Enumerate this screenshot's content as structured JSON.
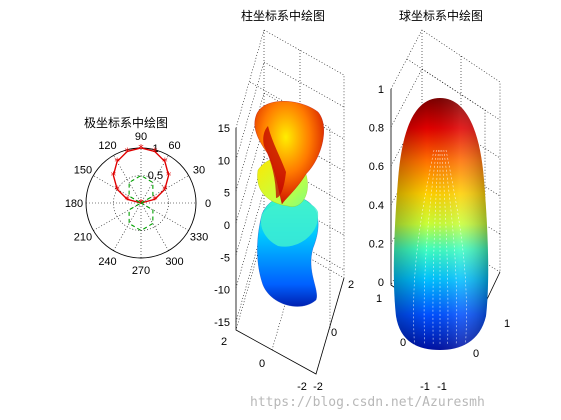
{
  "watermark": "https://blog.csdn.net/Azuresmh",
  "chart_data": [
    {
      "type": "polar",
      "title": "极坐标系中绘图",
      "angle_ticks": [
        "90",
        "60",
        "30",
        "0",
        "330",
        "300",
        "270",
        "240",
        "210",
        "180",
        "150",
        "120"
      ],
      "radial_ticks": [
        "0.5",
        "1"
      ],
      "rlim": [
        0,
        1
      ],
      "series": [
        {
          "style": "red solid line with asterisk markers",
          "color": "#e00000",
          "description_values": {
            "theta_deg": [
              0,
              15,
              30,
              45,
              60,
              75,
              90,
              105,
              120,
              135,
              150,
              165,
              180
            ],
            "r": [
              0,
              0.26,
              0.5,
              0.71,
              0.87,
              0.97,
              1,
              0.97,
              0.87,
              0.71,
              0.5,
              0.26,
              0
            ]
          }
        },
        {
          "style": "green dashed line",
          "color": "#00a000",
          "description_values": {
            "theta_deg": [
              0,
              30,
              60,
              90,
              120,
              150,
              180,
              210,
              240,
              270,
              300,
              330,
              360
            ],
            "r": [
              0,
              0.25,
              0.43,
              0.5,
              0.43,
              0.25,
              0,
              0.25,
              0.43,
              0.5,
              0.43,
              0.25,
              0
            ]
          }
        }
      ]
    },
    {
      "type": "surface3d",
      "title": "柱坐标系中绘图",
      "z_ticks": [
        "15",
        "10",
        "5",
        "0",
        "-5",
        "-10",
        "-15"
      ],
      "zlim": [
        -15,
        15
      ],
      "x_ticks": [
        "2",
        "0",
        "-2"
      ],
      "y_ticks": [
        "2",
        "0",
        "-2"
      ],
      "colormap": "jet"
    },
    {
      "type": "surface3d",
      "title": "球坐标系中绘图",
      "z_ticks": [
        "1",
        "0.8",
        "0.6",
        "0.4",
        "0.2",
        "0"
      ],
      "zlim": [
        0,
        1
      ],
      "x_ticks": [
        "1",
        "0",
        "-1"
      ],
      "y_ticks": [
        "1",
        "0",
        "-1"
      ],
      "colormap": "jet"
    }
  ]
}
